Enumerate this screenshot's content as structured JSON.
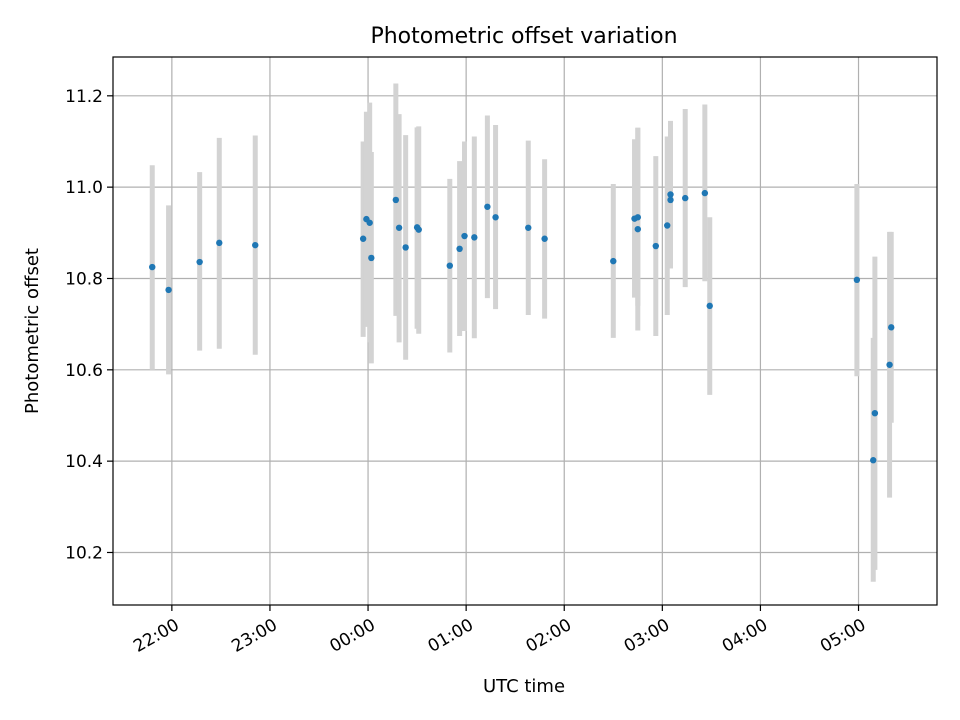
{
  "chart_data": {
    "type": "scatter",
    "title": "Photometric offset variation",
    "xlabel": "UTC time",
    "ylabel": "Photometric offset",
    "x_axis_kind": "time",
    "xlim": [
      "21:24",
      "05:48"
    ],
    "ylim": [
      10.085,
      11.285
    ],
    "grid": true,
    "x_ticks": [
      "22:00",
      "23:00",
      "00:00",
      "01:00",
      "02:00",
      "03:00",
      "04:00",
      "05:00"
    ],
    "y_ticks": [
      10.2,
      10.4,
      10.6,
      10.8,
      11.0,
      11.2
    ],
    "marker_color": "#1f77b4",
    "errorbar_color": "#d3d3d3",
    "points": [
      {
        "time": "21:48",
        "value": 10.825,
        "low": 10.6,
        "high": 11.048
      },
      {
        "time": "21:58",
        "value": 10.775,
        "low": 10.59,
        "high": 10.96
      },
      {
        "time": "22:17",
        "value": 10.836,
        "low": 10.642,
        "high": 11.033
      },
      {
        "time": "22:29",
        "value": 10.878,
        "low": 10.646,
        "high": 11.108
      },
      {
        "time": "22:51",
        "value": 10.873,
        "low": 10.633,
        "high": 11.113
      },
      {
        "time": "23:57",
        "value": 10.887,
        "low": 10.672,
        "high": 11.1
      },
      {
        "time": "23:59",
        "value": 10.93,
        "low": 10.694,
        "high": 11.165
      },
      {
        "time": "00:01",
        "value": 10.922,
        "low": 10.66,
        "high": 11.185
      },
      {
        "time": "00:02",
        "value": 10.845,
        "low": 10.614,
        "high": 11.077
      },
      {
        "time": "00:17",
        "value": 10.972,
        "low": 10.718,
        "high": 11.227
      },
      {
        "time": "00:19",
        "value": 10.911,
        "low": 10.66,
        "high": 11.16
      },
      {
        "time": "00:23",
        "value": 10.868,
        "low": 10.622,
        "high": 11.114
      },
      {
        "time": "00:30",
        "value": 10.912,
        "low": 10.69,
        "high": 11.131
      },
      {
        "time": "00:31",
        "value": 10.907,
        "low": 10.679,
        "high": 11.133
      },
      {
        "time": "00:50",
        "value": 10.828,
        "low": 10.638,
        "high": 11.018
      },
      {
        "time": "00:56",
        "value": 10.865,
        "low": 10.674,
        "high": 11.057
      },
      {
        "time": "00:59",
        "value": 10.893,
        "low": 10.685,
        "high": 11.1
      },
      {
        "time": "01:05",
        "value": 10.89,
        "low": 10.669,
        "high": 11.111
      },
      {
        "time": "01:13",
        "value": 10.957,
        "low": 10.757,
        "high": 11.157
      },
      {
        "time": "01:18",
        "value": 10.934,
        "low": 10.733,
        "high": 11.136
      },
      {
        "time": "01:38",
        "value": 10.911,
        "low": 10.72,
        "high": 11.102
      },
      {
        "time": "01:48",
        "value": 10.887,
        "low": 10.712,
        "high": 11.061
      },
      {
        "time": "02:30",
        "value": 10.838,
        "low": 10.67,
        "high": 11.007
      },
      {
        "time": "02:43",
        "value": 10.931,
        "low": 10.758,
        "high": 11.105
      },
      {
        "time": "02:45",
        "value": 10.934,
        "low": 10.74,
        "high": 11.13
      },
      {
        "time": "02:45",
        "value": 10.908,
        "low": 10.686,
        "high": 11.13
      },
      {
        "time": "02:56",
        "value": 10.871,
        "low": 10.674,
        "high": 11.068
      },
      {
        "time": "03:03",
        "value": 10.916,
        "low": 10.72,
        "high": 11.111
      },
      {
        "time": "03:05",
        "value": 10.984,
        "low": 10.822,
        "high": 11.145
      },
      {
        "time": "03:05",
        "value": 10.972,
        "low": 10.822,
        "high": 11.111
      },
      {
        "time": "03:14",
        "value": 10.976,
        "low": 10.781,
        "high": 11.171
      },
      {
        "time": "03:26",
        "value": 10.987,
        "low": 10.794,
        "high": 11.181
      },
      {
        "time": "03:29",
        "value": 10.74,
        "low": 10.545,
        "high": 10.934
      },
      {
        "time": "04:59",
        "value": 10.797,
        "low": 10.586,
        "high": 11.007
      },
      {
        "time": "05:09",
        "value": 10.402,
        "low": 10.136,
        "high": 10.67
      },
      {
        "time": "05:10",
        "value": 10.505,
        "low": 10.162,
        "high": 10.848
      },
      {
        "time": "05:19",
        "value": 10.611,
        "low": 10.32,
        "high": 10.902
      },
      {
        "time": "05:20",
        "value": 10.693,
        "low": 10.484,
        "high": 10.902
      }
    ]
  }
}
